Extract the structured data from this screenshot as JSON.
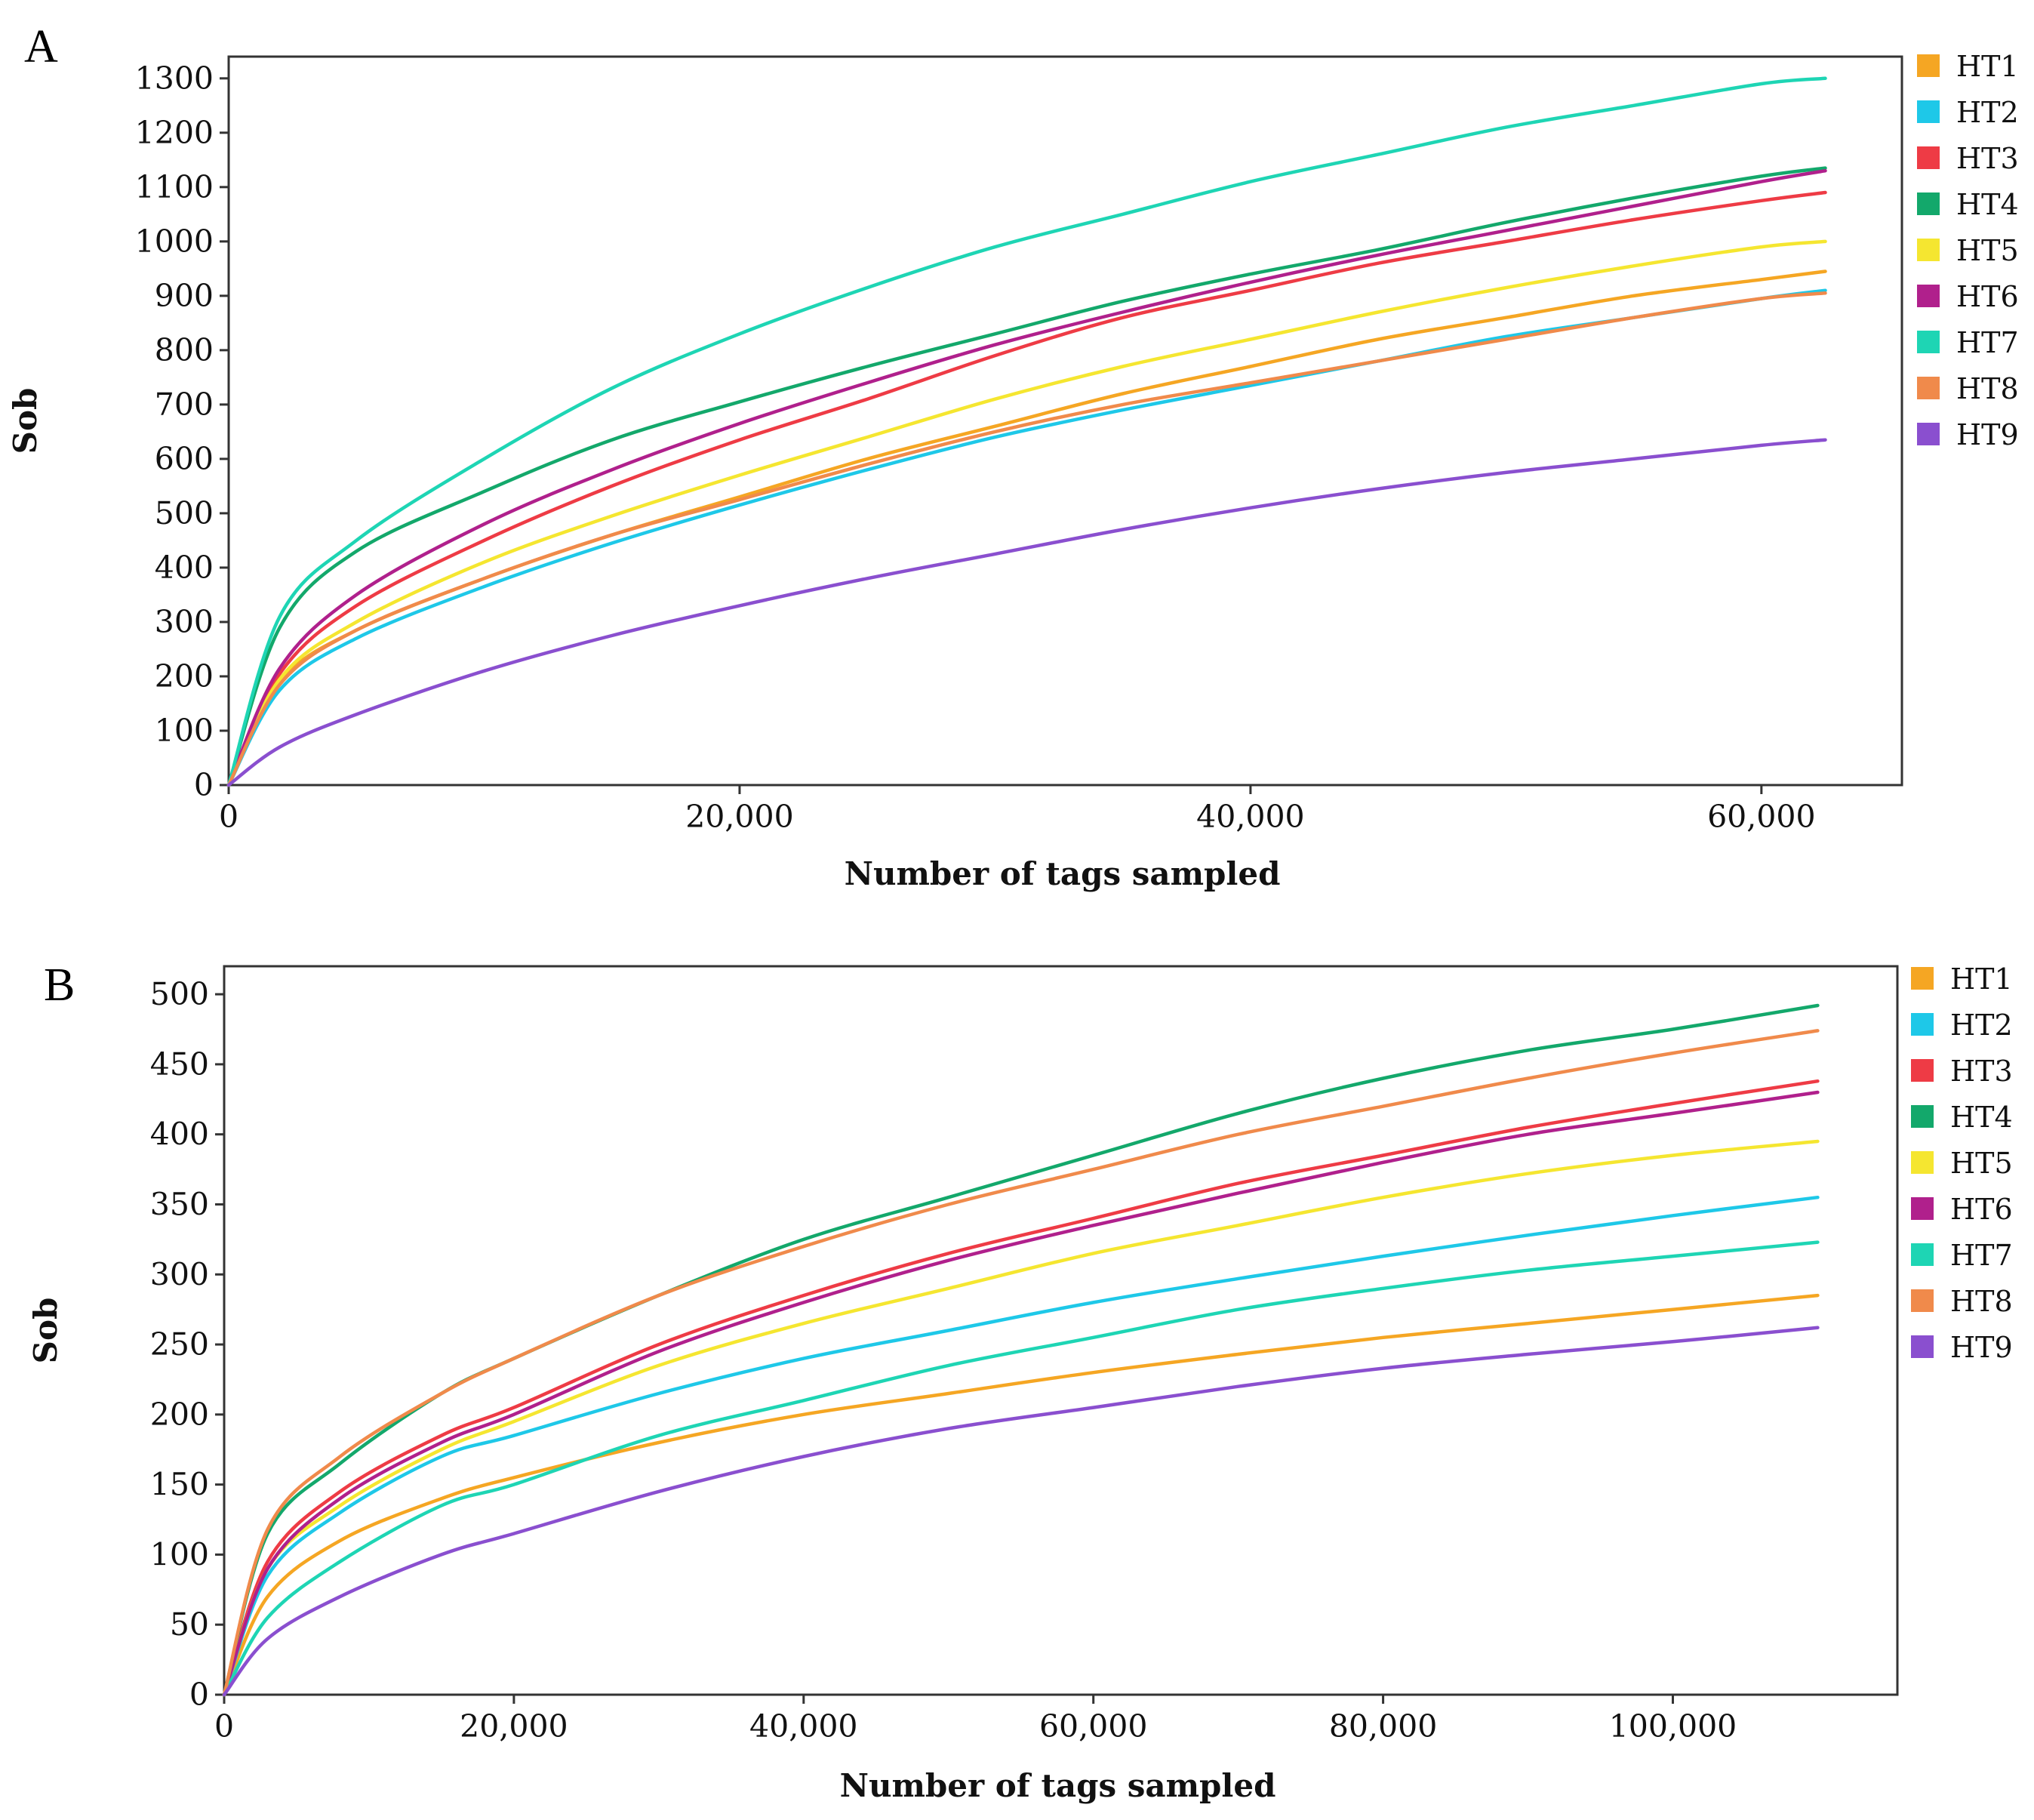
{
  "chart_data": [
    {
      "type": "line",
      "panel_label": "A",
      "xlabel": "Number of tags sampled",
      "ylabel": "Sob",
      "xlim": [
        0,
        65500
      ],
      "ylim": [
        0,
        1340
      ],
      "xticks": [
        0,
        20000,
        40000,
        60000
      ],
      "xtick_labels": [
        "0",
        "20,000",
        "40,000",
        "60,000"
      ],
      "yticks": [
        0,
        100,
        200,
        300,
        400,
        500,
        600,
        700,
        800,
        900,
        1000,
        1100,
        1200,
        1300
      ],
      "ytick_labels": [
        "0",
        "100",
        "200",
        "300",
        "400",
        "500",
        "600",
        "700",
        "800",
        "900",
        "1000",
        "1100",
        "1200",
        "1300"
      ],
      "grid": false,
      "legend_position": "right",
      "x": [
        0,
        2000,
        5000,
        10000,
        15000,
        20000,
        25000,
        30000,
        35000,
        40000,
        45000,
        50000,
        55000,
        60000,
        62500
      ],
      "series": [
        {
          "name": "HT1",
          "color": "#F5A623",
          "values": [
            0,
            190,
            285,
            380,
            460,
            530,
            600,
            660,
            720,
            770,
            820,
            860,
            900,
            930,
            945
          ]
        },
        {
          "name": "HT2",
          "color": "#1EC8E8",
          "values": [
            0,
            175,
            270,
            365,
            445,
            515,
            580,
            640,
            690,
            735,
            780,
            825,
            860,
            895,
            910
          ]
        },
        {
          "name": "HT3",
          "color": "#EE3B45",
          "values": [
            0,
            205,
            330,
            450,
            550,
            635,
            710,
            790,
            860,
            910,
            960,
            1000,
            1040,
            1075,
            1090
          ]
        },
        {
          "name": "HT4",
          "color": "#13A86B",
          "values": [
            0,
            290,
            430,
            540,
            635,
            705,
            770,
            830,
            890,
            940,
            985,
            1035,
            1080,
            1120,
            1135
          ]
        },
        {
          "name": "HT5",
          "color": "#F5E630",
          "values": [
            0,
            195,
            300,
            410,
            495,
            570,
            640,
            710,
            770,
            820,
            870,
            915,
            955,
            990,
            1000
          ]
        },
        {
          "name": "HT6",
          "color": "#B0208C",
          "values": [
            0,
            215,
            350,
            480,
            580,
            665,
            740,
            810,
            870,
            925,
            975,
            1020,
            1065,
            1110,
            1130
          ]
        },
        {
          "name": "HT7",
          "color": "#1ED5B4",
          "values": [
            0,
            310,
            450,
            600,
            730,
            830,
            915,
            990,
            1050,
            1110,
            1160,
            1210,
            1250,
            1290,
            1300
          ]
        },
        {
          "name": "HT8",
          "color": "#F08A4B",
          "values": [
            0,
            185,
            285,
            380,
            460,
            525,
            590,
            650,
            700,
            740,
            780,
            820,
            860,
            895,
            905
          ]
        },
        {
          "name": "HT9",
          "color": "#8A4FCF",
          "values": [
            0,
            70,
            130,
            210,
            275,
            330,
            380,
            425,
            470,
            510,
            545,
            575,
            600,
            625,
            635
          ]
        }
      ]
    },
    {
      "type": "line",
      "panel_label": "B",
      "xlabel": "Number of tags sampled",
      "ylabel": "Sob",
      "xlim": [
        0,
        115500
      ],
      "ylim": [
        0,
        520
      ],
      "xticks": [
        0,
        20000,
        40000,
        60000,
        80000,
        100000
      ],
      "xtick_labels": [
        "0",
        "20,000",
        "40,000",
        "60,000",
        "80,000",
        "100,000"
      ],
      "yticks": [
        0,
        50,
        100,
        150,
        200,
        250,
        300,
        350,
        400,
        450,
        500
      ],
      "ytick_labels": [
        "0",
        "50",
        "100",
        "150",
        "200",
        "250",
        "300",
        "350",
        "400",
        "450",
        "500"
      ],
      "grid": false,
      "legend_position": "right",
      "x": [
        0,
        3000,
        8000,
        15000,
        20000,
        30000,
        40000,
        50000,
        60000,
        70000,
        80000,
        90000,
        100000,
        110000
      ],
      "series": [
        {
          "name": "HT1",
          "color": "#F5A623",
          "values": [
            0,
            70,
            110,
            140,
            155,
            180,
            200,
            215,
            230,
            243,
            255,
            265,
            275,
            285
          ]
        },
        {
          "name": "HT2",
          "color": "#1EC8E8",
          "values": [
            0,
            85,
            130,
            170,
            185,
            215,
            240,
            260,
            280,
            297,
            313,
            328,
            342,
            355
          ]
        },
        {
          "name": "HT3",
          "color": "#EE3B45",
          "values": [
            0,
            95,
            145,
            185,
            205,
            250,
            285,
            315,
            340,
            365,
            385,
            405,
            422,
            438
          ]
        },
        {
          "name": "HT4",
          "color": "#13A86B",
          "values": [
            0,
            115,
            165,
            215,
            240,
            285,
            325,
            355,
            385,
            415,
            440,
            460,
            475,
            492
          ]
        },
        {
          "name": "HT5",
          "color": "#F5E630",
          "values": [
            0,
            90,
            135,
            175,
            195,
            235,
            265,
            290,
            315,
            335,
            355,
            372,
            385,
            395
          ]
        },
        {
          "name": "HT6",
          "color": "#B0208C",
          "values": [
            0,
            90,
            140,
            180,
            200,
            245,
            280,
            310,
            335,
            358,
            380,
            400,
            415,
            430
          ]
        },
        {
          "name": "HT7",
          "color": "#1ED5B4",
          "values": [
            0,
            55,
            95,
            135,
            150,
            185,
            210,
            235,
            255,
            275,
            290,
            303,
            313,
            323
          ]
        },
        {
          "name": "HT8",
          "color": "#F08A4B",
          "values": [
            0,
            118,
            170,
            215,
            240,
            285,
            320,
            350,
            375,
            400,
            420,
            440,
            458,
            474
          ]
        },
        {
          "name": "HT9",
          "color": "#8A4FCF",
          "values": [
            0,
            40,
            70,
            100,
            115,
            145,
            170,
            190,
            205,
            220,
            233,
            243,
            252,
            262
          ]
        }
      ]
    }
  ]
}
